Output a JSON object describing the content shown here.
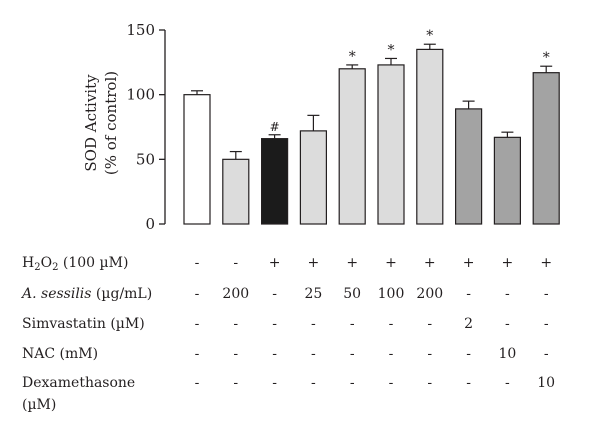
{
  "chart_data": {
    "type": "bar",
    "ylabel_line1": "SOD Activity",
    "ylabel_line2": "(% of control)",
    "ylim": [
      0,
      150
    ],
    "yticks": [
      0,
      50,
      100,
      150
    ],
    "values": [
      100,
      50,
      66,
      72,
      120,
      123,
      135,
      89,
      67,
      117
    ],
    "errors": [
      3,
      6,
      3,
      12,
      3,
      5,
      4,
      6,
      4,
      5
    ],
    "colors": [
      "#ffffff",
      "#dcdcdc",
      "#1b1b1b",
      "#dcdcdc",
      "#dcdcdc",
      "#dcdcdc",
      "#dcdcdc",
      "#a3a3a3",
      "#a3a3a3",
      "#a3a3a3"
    ],
    "annotations": [
      "",
      "",
      "#",
      "",
      "*",
      "*",
      "*",
      "",
      "",
      "*"
    ]
  },
  "table": {
    "rows": [
      {
        "label_main": "H",
        "label_sub": "2",
        "label_mid": "O",
        "label_sub2": "2",
        "label_tail": " (100 µM)",
        "cells": [
          "-",
          "-",
          "+",
          "+",
          "+",
          "+",
          "+",
          "+",
          "+",
          "+"
        ]
      },
      {
        "label_italic": "A. sessilis",
        "label_tail": " (µg/mL)",
        "cells": [
          "-",
          "200",
          "-",
          "25",
          "50",
          "100",
          "200",
          "-",
          "-",
          "-"
        ]
      },
      {
        "label_plain": "Simvastatin (µM)",
        "cells": [
          "-",
          "-",
          "-",
          "-",
          "-",
          "-",
          "-",
          "2",
          "-",
          "-"
        ]
      },
      {
        "label_plain": "NAC (mM)",
        "cells": [
          "-",
          "-",
          "-",
          "-",
          "-",
          "-",
          "-",
          "-",
          "10",
          "-"
        ]
      },
      {
        "label_plain": "Dexamethasone",
        "label_line2": "(µM)",
        "cells": [
          "-",
          "-",
          "-",
          "-",
          "-",
          "-",
          "-",
          "-",
          "-",
          "10"
        ]
      }
    ]
  }
}
